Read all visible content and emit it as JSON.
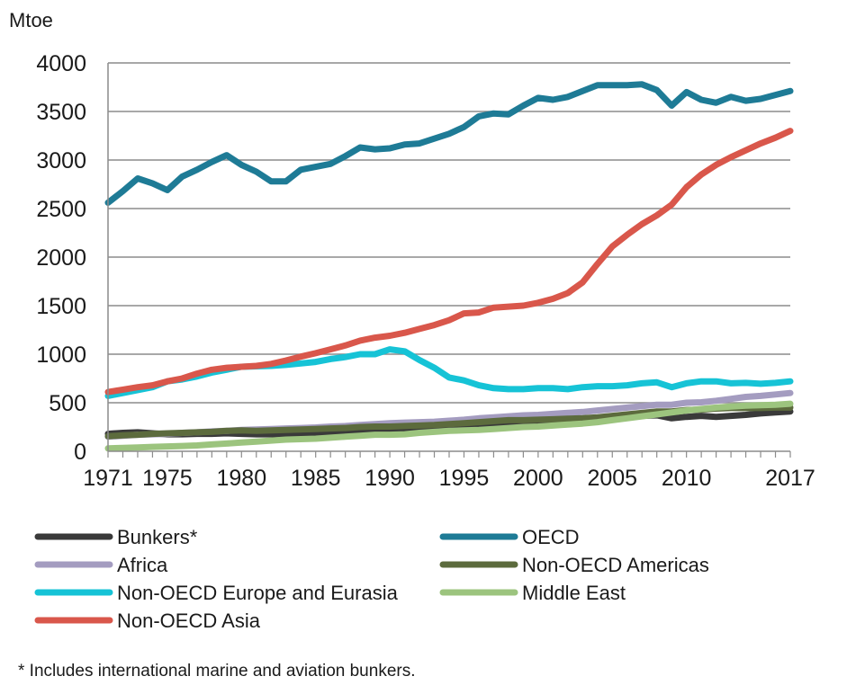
{
  "chart_data": {
    "type": "line",
    "title": "",
    "ylabel": "Mtoe",
    "xlabel": "",
    "ylim": [
      0,
      4000
    ],
    "yticks": [
      0,
      500,
      1000,
      1500,
      2000,
      2500,
      3000,
      3500,
      4000
    ],
    "xlim": [
      1971,
      2017
    ],
    "xticks": [
      1971,
      1975,
      1980,
      1985,
      1990,
      1995,
      2000,
      2005,
      2010,
      2017
    ],
    "grid": "horizontal",
    "legend_position": "bottom",
    "x": [
      1971,
      1972,
      1973,
      1974,
      1975,
      1976,
      1977,
      1978,
      1979,
      1980,
      1981,
      1982,
      1983,
      1984,
      1985,
      1986,
      1987,
      1988,
      1989,
      1990,
      1991,
      1992,
      1993,
      1994,
      1995,
      1996,
      1997,
      1998,
      1999,
      2000,
      2001,
      2002,
      2003,
      2004,
      2005,
      2006,
      2007,
      2008,
      2009,
      2010,
      2011,
      2012,
      2013,
      2014,
      2015,
      2016,
      2017
    ],
    "series": [
      {
        "name": "Bunkers*",
        "color": "#3a3a3a",
        "values": [
          180,
          190,
          195,
          185,
          175,
          175,
          180,
          180,
          185,
          180,
          175,
          175,
          180,
          180,
          185,
          190,
          195,
          200,
          210,
          215,
          215,
          225,
          230,
          235,
          245,
          255,
          265,
          275,
          285,
          290,
          300,
          310,
          320,
          330,
          345,
          360,
          365,
          370,
          340,
          355,
          365,
          355,
          365,
          375,
          390,
          400,
          410
        ]
      },
      {
        "name": "OECD",
        "color": "#1e7b96",
        "values": [
          2560,
          2680,
          2810,
          2760,
          2690,
          2830,
          2900,
          2980,
          3050,
          2950,
          2880,
          2780,
          2780,
          2900,
          2930,
          2960,
          3040,
          3130,
          3110,
          3120,
          3160,
          3170,
          3220,
          3270,
          3340,
          3450,
          3480,
          3470,
          3560,
          3640,
          3620,
          3650,
          3710,
          3770,
          3770,
          3770,
          3780,
          3720,
          3560,
          3700,
          3620,
          3590,
          3650,
          3610,
          3630,
          3670,
          3710
        ]
      },
      {
        "name": "Africa",
        "color": "#a49cc0",
        "values": [
          150,
          160,
          170,
          175,
          180,
          190,
          195,
          205,
          210,
          220,
          225,
          230,
          235,
          240,
          245,
          255,
          260,
          270,
          280,
          290,
          295,
          300,
          305,
          315,
          325,
          340,
          350,
          360,
          370,
          375,
          385,
          395,
          405,
          420,
          435,
          450,
          465,
          480,
          480,
          500,
          505,
          520,
          540,
          560,
          570,
          585,
          600
        ]
      },
      {
        "name": "Non-OECD Americas",
        "color": "#5c6b3d",
        "values": [
          155,
          165,
          170,
          180,
          185,
          190,
          195,
          200,
          210,
          215,
          210,
          215,
          220,
          225,
          230,
          235,
          240,
          250,
          255,
          255,
          260,
          265,
          270,
          280,
          290,
          300,
          310,
          320,
          320,
          325,
          330,
          335,
          340,
          350,
          365,
          380,
          395,
          410,
          410,
          425,
          430,
          440,
          445,
          445,
          445,
          450,
          450
        ]
      },
      {
        "name": "Non-OECD Europe and Eurasia",
        "color": "#16c3d6",
        "values": [
          570,
          600,
          630,
          660,
          720,
          740,
          770,
          810,
          840,
          870,
          875,
          880,
          890,
          905,
          920,
          950,
          970,
          1000,
          1000,
          1050,
          1030,
          940,
          860,
          760,
          730,
          680,
          650,
          640,
          640,
          650,
          650,
          640,
          660,
          670,
          670,
          680,
          700,
          710,
          660,
          700,
          720,
          720,
          700,
          705,
          695,
          705,
          720
        ]
      },
      {
        "name": "Middle East",
        "color": "#9cc47e",
        "values": [
          30,
          35,
          40,
          45,
          50,
          55,
          60,
          70,
          80,
          90,
          100,
          110,
          120,
          125,
          130,
          140,
          150,
          160,
          170,
          170,
          175,
          190,
          200,
          210,
          215,
          220,
          230,
          240,
          250,
          255,
          265,
          275,
          285,
          300,
          320,
          340,
          360,
          380,
          400,
          420,
          435,
          450,
          460,
          470,
          475,
          480,
          490
        ]
      },
      {
        "name": "Non-OECD Asia",
        "color": "#d9574b",
        "values": [
          610,
          635,
          660,
          680,
          720,
          750,
          800,
          840,
          860,
          870,
          880,
          900,
          935,
          975,
          1010,
          1050,
          1090,
          1140,
          1170,
          1190,
          1220,
          1260,
          1300,
          1350,
          1420,
          1430,
          1480,
          1490,
          1500,
          1530,
          1570,
          1630,
          1740,
          1930,
          2110,
          2230,
          2340,
          2430,
          2540,
          2720,
          2850,
          2950,
          3030,
          3100,
          3170,
          3230,
          3300
        ]
      }
    ],
    "footnote": "* Includes international marine and aviation bunkers."
  }
}
